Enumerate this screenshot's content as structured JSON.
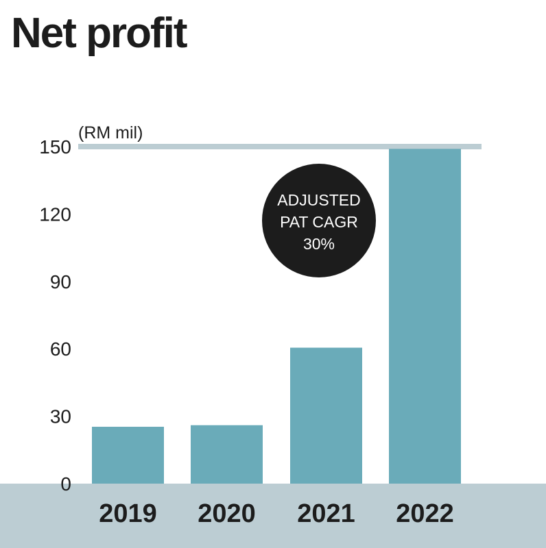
{
  "title": "Net profit",
  "chart_data": {
    "type": "bar",
    "title": "Net profit",
    "unit_label": "(RM mil)",
    "categories": [
      "2019",
      "2020",
      "2021",
      "2022"
    ],
    "values": [
      25.3,
      26,
      60.5,
      149
    ],
    "ylim": [
      0,
      150
    ],
    "yticks": [
      "0",
      "30",
      "60",
      "90",
      "120",
      "150"
    ],
    "ytick_values": [
      0,
      30,
      60,
      90,
      120,
      150
    ],
    "grid": false,
    "legend": "none",
    "annotation": {
      "lines": [
        "ADJUSTED",
        "PAT CAGR",
        "30%"
      ]
    },
    "colors": {
      "bar": "#6aabb9",
      "axis_band": "#bccdd3",
      "reference_line": "#bccdd3",
      "annotation_bg": "#1c1c1c",
      "annotation_text": "#ffffff",
      "text": "#1c1c1c"
    }
  }
}
